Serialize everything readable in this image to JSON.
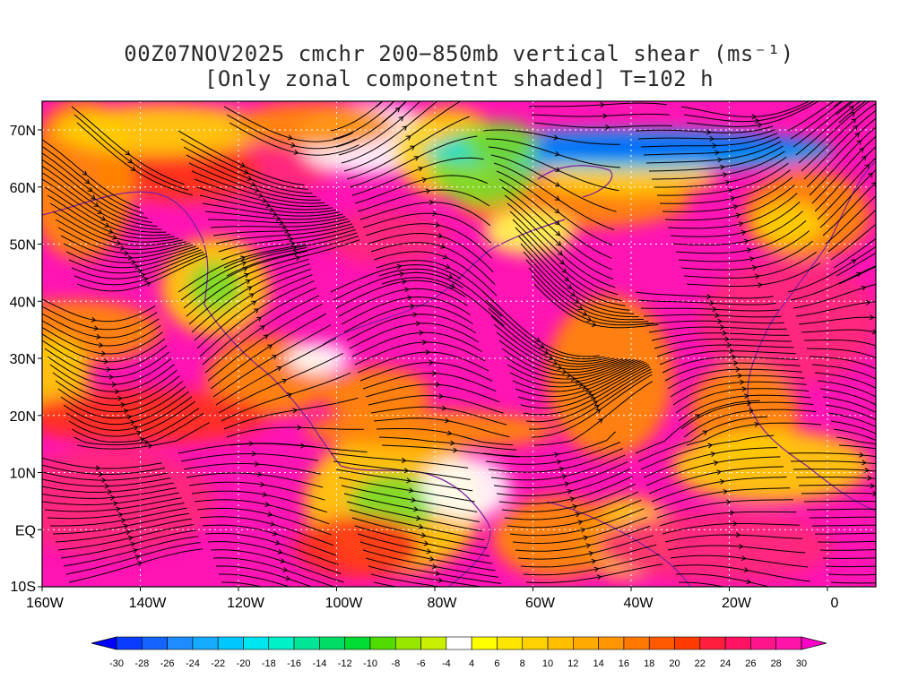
{
  "title": {
    "line1": "00Z07NOV2025 cmchr 200−850mb vertical shear (ms⁻¹)",
    "line2": "[Only zonal componetnt shaded] T=102 h"
  },
  "axes": {
    "lat_labels": [
      "70N",
      "60N",
      "50N",
      "40N",
      "30N",
      "20N",
      "10N",
      "EQ",
      "10S"
    ],
    "lon_labels": [
      "160W",
      "140W",
      "120W",
      "100W",
      "80W",
      "60W",
      "40W",
      "20W",
      "0"
    ]
  },
  "colorbar": {
    "labels": [
      "-30",
      "-28",
      "-26",
      "-24",
      "-22",
      "-20",
      "-18",
      "-16",
      "-14",
      "-12",
      "-10",
      "-8",
      "-6",
      "-4",
      "4",
      "6",
      "8",
      "10",
      "12",
      "14",
      "16",
      "18",
      "20",
      "22",
      "24",
      "26",
      "28",
      "30"
    ],
    "colors": [
      "#0000ff",
      "#0a3cff",
      "#1464ff",
      "#1e8cff",
      "#14aaff",
      "#00c8ff",
      "#00e6f0",
      "#00f0c8",
      "#00e696",
      "#00dc64",
      "#00dc32",
      "#50dc00",
      "#96e600",
      "#c8f000",
      "#ffffff",
      "#ffff00",
      "#ffe600",
      "#ffd200",
      "#ffbe00",
      "#ffaa00",
      "#ff9600",
      "#ff7800",
      "#ff5a00",
      "#ff3c00",
      "#ff1e3c",
      "#ff1464",
      "#ff148c",
      "#ff14aa",
      "#ff00c8"
    ]
  },
  "map_colors": {
    "magenta": "#ff14b4",
    "pink": "#ff2878",
    "red": "#ff3214",
    "orange": "#ff8c00",
    "yellow": "#ffd200",
    "light_yellow": "#ffff50",
    "green": "#78dc28",
    "cyan": "#00dcdc",
    "blue": "#0050ff",
    "white": "#ffffff"
  }
}
